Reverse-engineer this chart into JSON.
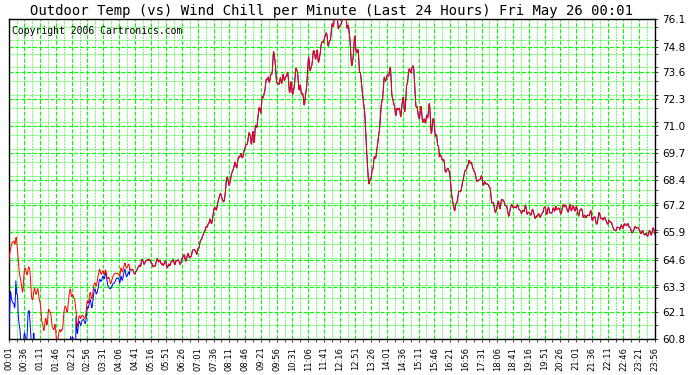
{
  "title": "Outdoor Temp (vs) Wind Chill per Minute (Last 24 Hours) Fri May 26 00:01",
  "copyright": "Copyright 2006 Cartronics.com",
  "yticks": [
    60.8,
    62.1,
    63.3,
    64.6,
    65.9,
    67.2,
    68.4,
    69.7,
    71.0,
    72.3,
    73.6,
    74.8,
    76.1
  ],
  "ylim": [
    60.8,
    76.1
  ],
  "xtick_labels": [
    "00:01",
    "00:36",
    "01:11",
    "01:46",
    "02:21",
    "02:56",
    "03:31",
    "04:06",
    "04:41",
    "05:16",
    "05:51",
    "06:26",
    "07:01",
    "07:36",
    "08:11",
    "08:46",
    "09:21",
    "09:56",
    "10:31",
    "11:06",
    "11:41",
    "12:16",
    "12:51",
    "13:26",
    "14:01",
    "14:36",
    "15:11",
    "15:46",
    "16:21",
    "16:56",
    "17:31",
    "18:06",
    "18:41",
    "19:16",
    "19:51",
    "20:26",
    "21:01",
    "21:36",
    "22:11",
    "22:46",
    "23:21",
    "23:56"
  ],
  "background_color": "#ffffff",
  "plot_bg_color": "#ffffff",
  "grid_color": "#00ff00",
  "line1_color": "#ff0000",
  "line2_color": "#0000ff",
  "title_fontsize": 10,
  "copyright_fontsize": 7
}
